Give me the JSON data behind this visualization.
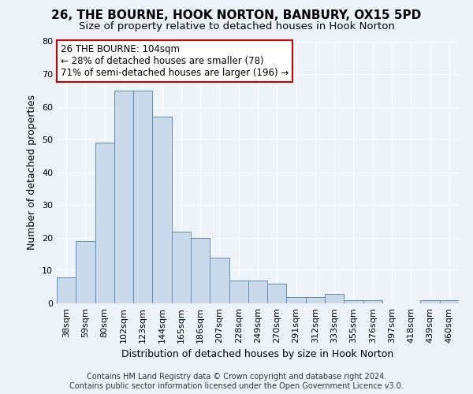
{
  "title": "26, THE BOURNE, HOOK NORTON, BANBURY, OX15 5PD",
  "subtitle": "Size of property relative to detached houses in Hook Norton",
  "xlabel": "Distribution of detached houses by size in Hook Norton",
  "ylabel": "Number of detached properties",
  "categories": [
    "38sqm",
    "59sqm",
    "80sqm",
    "102sqm",
    "123sqm",
    "144sqm",
    "165sqm",
    "186sqm",
    "207sqm",
    "228sqm",
    "249sqm",
    "270sqm",
    "291sqm",
    "312sqm",
    "333sqm",
    "355sqm",
    "376sqm",
    "397sqm",
    "418sqm",
    "439sqm",
    "460sqm"
  ],
  "values": [
    8,
    19,
    49,
    65,
    65,
    57,
    22,
    20,
    14,
    7,
    7,
    6,
    2,
    2,
    3,
    1,
    1,
    0,
    0,
    1,
    1
  ],
  "bar_color": "#c9d9ea",
  "bar_edge_color": "#5b8db8",
  "ylim": [
    0,
    80
  ],
  "yticks": [
    0,
    10,
    20,
    30,
    40,
    50,
    60,
    70,
    80
  ],
  "annotation_line1": "26 THE BOURNE: 104sqm",
  "annotation_line2": "← 28% of detached houses are smaller (78)",
  "annotation_line3": "71% of semi-detached houses are larger (196) →",
  "annotation_box_color": "#ffffff",
  "annotation_border_color": "#cc0000",
  "footer_line1": "Contains HM Land Registry data © Crown copyright and database right 2024.",
  "footer_line2": "Contains public sector information licensed under the Open Government Licence v3.0.",
  "background_color": "#eef3fa",
  "grid_color": "#ffffff",
  "title_fontsize": 11,
  "subtitle_fontsize": 9.5,
  "axis_label_fontsize": 9,
  "tick_fontsize": 8,
  "annotation_fontsize": 8.5,
  "footer_fontsize": 7
}
